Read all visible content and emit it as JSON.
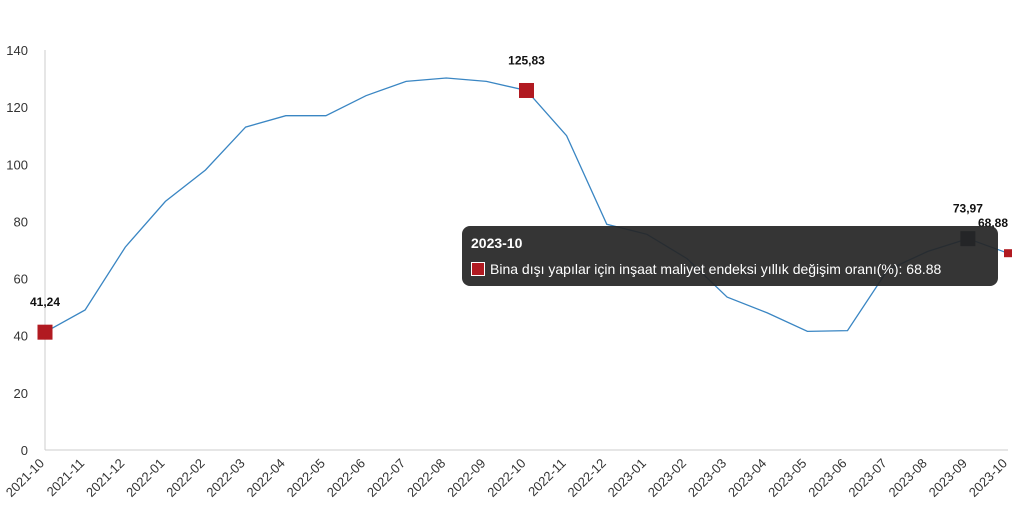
{
  "chart_data": {
    "type": "line",
    "categories": [
      "2021-10",
      "2021-11",
      "2021-12",
      "2022-01",
      "2022-02",
      "2022-03",
      "2022-04",
      "2022-05",
      "2022-06",
      "2022-07",
      "2022-08",
      "2022-09",
      "2022-10",
      "2022-11",
      "2022-12",
      "2023-01",
      "2023-02",
      "2023-03",
      "2023-04",
      "2023-05",
      "2023-06",
      "2023-07",
      "2023-08",
      "2023-09",
      "2023-10"
    ],
    "series": [
      {
        "name": "Bina dışı yapılar için inşaat maliyet endeksi yıllık değişim oranı(%)",
        "values": [
          41.24,
          49,
          71,
          87,
          98,
          113,
          117,
          117,
          124,
          129,
          130.2,
          129,
          125.83,
          110,
          79,
          75.5,
          67,
          53.5,
          48,
          41.5,
          41.8,
          63,
          69.5,
          73.97,
          68.88
        ]
      }
    ],
    "ylim": [
      0,
      140
    ],
    "yticks": [
      0,
      20,
      40,
      60,
      80,
      100,
      120,
      140
    ],
    "grid": false,
    "line_color": "#3a86c3",
    "marker_color": "#b11a21",
    "hover_marker_color": "#13223a",
    "data_labels": [
      {
        "category": "2021-10",
        "text": "41,24"
      },
      {
        "category": "2022-10",
        "text": "125,83"
      },
      {
        "category": "2023-09",
        "text": "73,97"
      },
      {
        "category": "2023-10",
        "text": "68,88"
      }
    ]
  },
  "tooltip": {
    "title": "2023-10",
    "label": "Bina dışı yapılar için inşaat maliyet endeksi yıllık değişim oranı(%): 68.88"
  }
}
